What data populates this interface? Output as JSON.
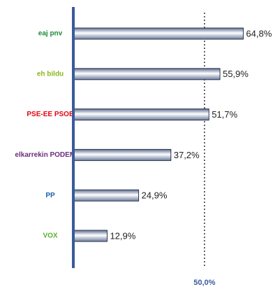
{
  "chart_data": {
    "type": "hbar",
    "categories": [
      "eaj pnv",
      "eh bildu",
      "PSE-EE PSOE",
      "elkarrekin PODEMOS",
      "PP",
      "VOX"
    ],
    "category_colors": [
      "#1f8a3c",
      "#8ab81e",
      "#e30613",
      "#6b2c7e",
      "#1e5fae",
      "#5ab031"
    ],
    "values": [
      64.8,
      55.9,
      51.7,
      37.2,
      24.9,
      12.9
    ],
    "value_labels": [
      "64,8%",
      "55,9%",
      "51,7%",
      "37,2%",
      "24,9%",
      "12,9%"
    ],
    "color": "#8e9cb8",
    "axis_color": "#3a5a9c",
    "xlim": [
      0,
      78
    ],
    "reference_line": {
      "value": 50,
      "label": "50,0%"
    }
  }
}
